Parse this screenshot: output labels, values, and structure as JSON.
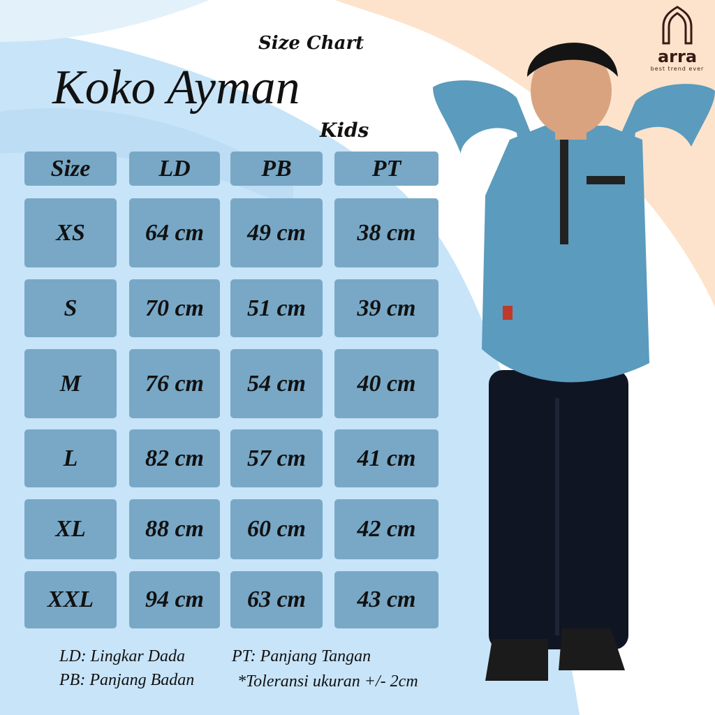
{
  "brand": {
    "name": "arra",
    "tagline": "best trend ever"
  },
  "title": {
    "main": "Koko Ayman",
    "subtitle": "Size Chart",
    "audience": "Kids"
  },
  "table": {
    "headers": [
      "Size",
      "LD",
      "PB",
      "PT"
    ],
    "rows": [
      [
        "XS",
        "64 cm",
        "49 cm",
        "38 cm"
      ],
      [
        "S",
        "70 cm",
        "51 cm",
        "39 cm"
      ],
      [
        "M",
        "76 cm",
        "54 cm",
        "40 cm"
      ],
      [
        "L",
        "82 cm",
        "57 cm",
        "41 cm"
      ],
      [
        "XL",
        "88 cm",
        "60 cm",
        "42 cm"
      ],
      [
        "XXL",
        "94 cm",
        "63 cm",
        "43 cm"
      ]
    ]
  },
  "legend": {
    "ld": "LD: Lingkar Dada",
    "pb": "PB: Panjang Badan",
    "pt": "PT: Panjang Tangan",
    "tolerance": "*Toleransi ukuran +/- 2cm"
  },
  "colors": {
    "cell": "#78a8c6",
    "background": "#c8e4f8",
    "accent": "#fde3cc",
    "shirt": "#5b9bbd",
    "logo": "#3a1a14"
  }
}
